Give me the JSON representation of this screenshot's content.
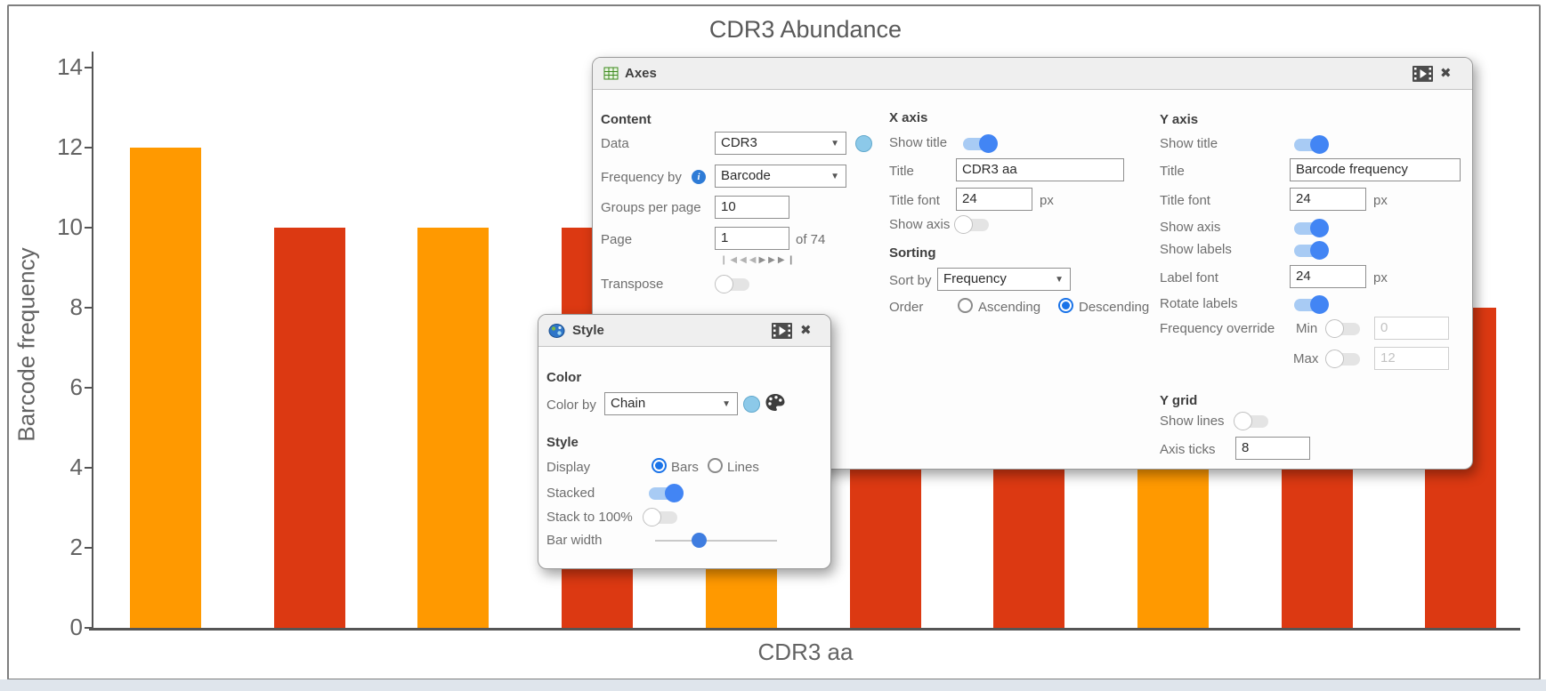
{
  "chart_data": {
    "type": "bar",
    "title": "CDR3 Abundance",
    "xlabel": "CDR3 aa",
    "ylabel": "Barcode frequency",
    "ylim": [
      0,
      14
    ],
    "y_ticks": [
      14,
      12,
      10,
      8,
      6,
      4,
      2,
      0
    ],
    "x_tick_labels_hidden": true,
    "grid": false,
    "palette": {
      "orange": "#FF9900",
      "red": "#DC3912"
    },
    "bars": [
      {
        "value": 12,
        "color": "orange"
      },
      {
        "value": 10,
        "color": "red"
      },
      {
        "value": 10,
        "color": "orange"
      },
      {
        "value": 10,
        "color": "red"
      },
      {
        "value": 10,
        "color": "orange"
      },
      {
        "value": 10,
        "color": "red"
      },
      {
        "value": 9,
        "color": "red"
      },
      {
        "value": 9,
        "color": "orange"
      },
      {
        "value": 8,
        "color": "red"
      },
      {
        "value": 8,
        "color": "red"
      }
    ]
  },
  "axes_panel": {
    "title": "Axes",
    "header_icons": {
      "animate": "filmstrip-play",
      "close": "✖"
    },
    "content": {
      "heading": "Content",
      "data_label": "Data",
      "data_value": "CDR3",
      "frequency_by_label": "Frequency by",
      "frequency_by_value": "Barcode",
      "groups_per_page_label": "Groups per page",
      "groups_per_page_value": "10",
      "page_label": "Page",
      "page_value": "1",
      "page_total": "of 74",
      "pager_first": "❙◀",
      "pager_prev": "◀◀",
      "pager_next": "▶▶",
      "pager_last": "▶❙",
      "transpose_label": "Transpose",
      "transpose_on": false
    },
    "x_axis": {
      "heading": "X axis",
      "show_title_label": "Show title",
      "show_title_on": true,
      "title_label": "Title",
      "title_value": "CDR3 aa",
      "title_font_label": "Title font",
      "title_font_value": "24",
      "title_font_unit": "px",
      "show_axis_label": "Show axis",
      "show_axis_on": false
    },
    "sorting": {
      "heading": "Sorting",
      "sort_by_label": "Sort by",
      "sort_by_value": "Frequency",
      "order_label": "Order",
      "ascending_label": "Ascending",
      "ascending_selected": false,
      "descending_label": "Descending",
      "descending_selected": true
    },
    "y_axis": {
      "heading": "Y axis",
      "show_title_label": "Show title",
      "show_title_on": true,
      "title_label": "Title",
      "title_value": "Barcode frequency",
      "title_font_label": "Title font",
      "title_font_value": "24",
      "title_font_unit": "px",
      "show_axis_label": "Show axis",
      "show_axis_on": true,
      "show_labels_label": "Show labels",
      "show_labels_on": true,
      "label_font_label": "Label font",
      "label_font_value": "24",
      "label_font_unit": "px",
      "rotate_labels_label": "Rotate labels",
      "rotate_labels_on": true,
      "frequency_override_label": "Frequency override",
      "min_label": "Min",
      "min_on": false,
      "min_value": "0",
      "max_label": "Max",
      "max_on": false,
      "max_value": "12"
    },
    "y_grid": {
      "heading": "Y grid",
      "show_lines_label": "Show lines",
      "show_lines_on": false,
      "axis_ticks_label": "Axis ticks",
      "axis_ticks_value": "8"
    }
  },
  "style_panel": {
    "title": "Style",
    "color": {
      "heading": "Color",
      "color_by_label": "Color by",
      "color_by_value": "Chain"
    },
    "style": {
      "heading": "Style",
      "display_label": "Display",
      "bars_label": "Bars",
      "bars_selected": true,
      "lines_label": "Lines",
      "lines_selected": false,
      "stacked_label": "Stacked",
      "stacked_on": true,
      "stack100_label": "Stack to 100%",
      "stack100_on": false,
      "bar_width_label": "Bar width",
      "bar_width_percent": 36
    }
  }
}
